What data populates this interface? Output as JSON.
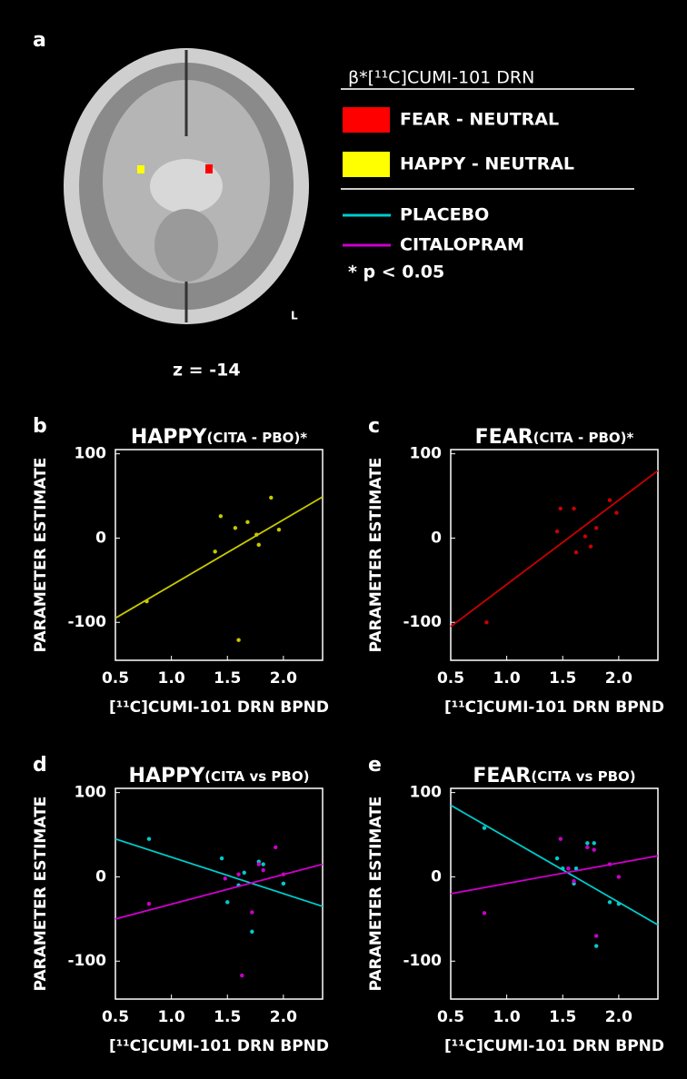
{
  "brain_panel": {
    "label": "a",
    "legend_title": "β*[¹¹C]CUMI-101 DRN",
    "contrasts": [
      {
        "label": "FEAR - NEUTRAL",
        "color": "#ff0000"
      },
      {
        "label": "HAPPY - NEUTRAL",
        "color": "#ffff00"
      }
    ],
    "conditions": [
      {
        "label": "PLACEBO",
        "color": "#00cccc"
      },
      {
        "label": "CITALOPRAM",
        "color": "#cc00cc"
      }
    ],
    "significance_note": "* p < 0.05",
    "orientation": "L",
    "slice": "z = -14"
  },
  "chart_data": [
    {
      "type": "scatter",
      "panel": "b",
      "title": "HAPPY",
      "subtitle": "(CITA - PBO)*",
      "x_label": "[¹¹C]CUMI-101 DRN BPND",
      "y_label": "PARAMETER ESTIMATE",
      "xlim": [
        0.5,
        2.35
      ],
      "ylim": [
        -145,
        105
      ],
      "xticks": [
        0.5,
        {
          "value": 1,
          "label": "1.0"
        },
        1.5,
        {
          "value": 2,
          "label": "2.0"
        }
      ],
      "yticks": [
        -100,
        0,
        100
      ],
      "series": [
        {
          "color": "#c8c800",
          "x": [
            0.78,
            1.44,
            1.39,
            1.57,
            1.68,
            1.6,
            1.76,
            1.78,
            1.89,
            1.96
          ],
          "values": [
            -75,
            26,
            -16,
            12,
            19,
            -121,
            4,
            -8,
            48,
            10
          ],
          "fit": {
            "x": [
              0.5,
              2.35
            ],
            "y": [
              -95,
              49
            ]
          }
        }
      ]
    },
    {
      "type": "scatter",
      "panel": "c",
      "title": "FEAR",
      "subtitle": "(CITA - PBO)*",
      "x_label": "[¹¹C]CUMI-101 DRN BPND",
      "y_label": "PARAMETER ESTIMATE",
      "xlim": [
        0.5,
        2.35
      ],
      "ylim": [
        -145,
        105
      ],
      "xticks": [
        0.5,
        {
          "value": 1,
          "label": "1.0"
        },
        1.5,
        {
          "value": 2,
          "label": "2.0"
        }
      ],
      "yticks": [
        -100,
        0,
        100
      ],
      "series": [
        {
          "color": "#cc0000",
          "x": [
            0.82,
            1.45,
            1.48,
            1.6,
            1.62,
            1.7,
            1.75,
            1.8,
            1.92,
            1.98
          ],
          "values": [
            -100,
            8,
            35,
            35,
            -17,
            2,
            -10,
            12,
            45,
            30
          ],
          "fit": {
            "x": [
              0.5,
              2.35
            ],
            "y": [
              -105,
              80
            ]
          }
        }
      ]
    },
    {
      "type": "scatter",
      "panel": "d",
      "title": "HAPPY",
      "subtitle": "(CITA vs PBO)",
      "x_label": "[¹¹C]CUMI-101 DRN BPND",
      "y_label": "PARAMETER ESTIMATE",
      "xlim": [
        0.5,
        2.35
      ],
      "ylim": [
        -145,
        105
      ],
      "xticks": [
        0.5,
        {
          "value": 1,
          "label": "1.0"
        },
        1.5,
        {
          "value": 2,
          "label": "2.0"
        }
      ],
      "yticks": [
        -100,
        0,
        100
      ],
      "series": [
        {
          "color": "#00cccc",
          "x": [
            0.8,
            1.45,
            1.5,
            1.6,
            1.65,
            1.72,
            1.78,
            1.82,
            2.0
          ],
          "values": [
            45,
            22,
            -30,
            -10,
            5,
            -65,
            18,
            15,
            -8
          ],
          "fit": {
            "x": [
              0.5,
              2.35
            ],
            "y": [
              45,
              -35
            ]
          }
        },
        {
          "color": "#cc00cc",
          "x": [
            0.8,
            1.48,
            1.6,
            1.63,
            1.72,
            1.78,
            1.82,
            1.93,
            2.0
          ],
          "values": [
            -32,
            -2,
            3,
            -117,
            -42,
            15,
            8,
            35,
            3
          ],
          "fit": {
            "x": [
              0.5,
              2.35
            ],
            "y": [
              -50,
              15
            ]
          }
        }
      ]
    },
    {
      "type": "scatter",
      "panel": "e",
      "title": "FEAR",
      "subtitle": "(CITA vs PBO)",
      "x_label": "[¹¹C]CUMI-101 DRN BPND",
      "y_label": "PARAMETER ESTIMATE",
      "xlim": [
        0.5,
        2.35
      ],
      "ylim": [
        -145,
        105
      ],
      "xticks": [
        0.5,
        {
          "value": 1,
          "label": "1.0"
        },
        1.5,
        {
          "value": 2,
          "label": "2.0"
        }
      ],
      "yticks": [
        -100,
        0,
        100
      ],
      "series": [
        {
          "color": "#00cccc",
          "x": [
            0.8,
            1.45,
            1.5,
            1.6,
            1.62,
            1.72,
            1.78,
            1.8,
            1.92,
            2.0
          ],
          "values": [
            58,
            22,
            10,
            -8,
            10,
            40,
            40,
            -82,
            -30,
            -32
          ],
          "fit": {
            "x": [
              0.5,
              2.35
            ],
            "y": [
              85,
              -57
            ]
          }
        },
        {
          "color": "#cc00cc",
          "x": [
            0.8,
            1.48,
            1.55,
            1.6,
            1.72,
            1.78,
            1.8,
            1.92,
            2.0
          ],
          "values": [
            -43,
            45,
            10,
            -5,
            35,
            32,
            -70,
            15,
            0
          ],
          "fit": {
            "x": [
              0.5,
              2.35
            ],
            "y": [
              -20,
              25
            ]
          }
        }
      ]
    }
  ]
}
